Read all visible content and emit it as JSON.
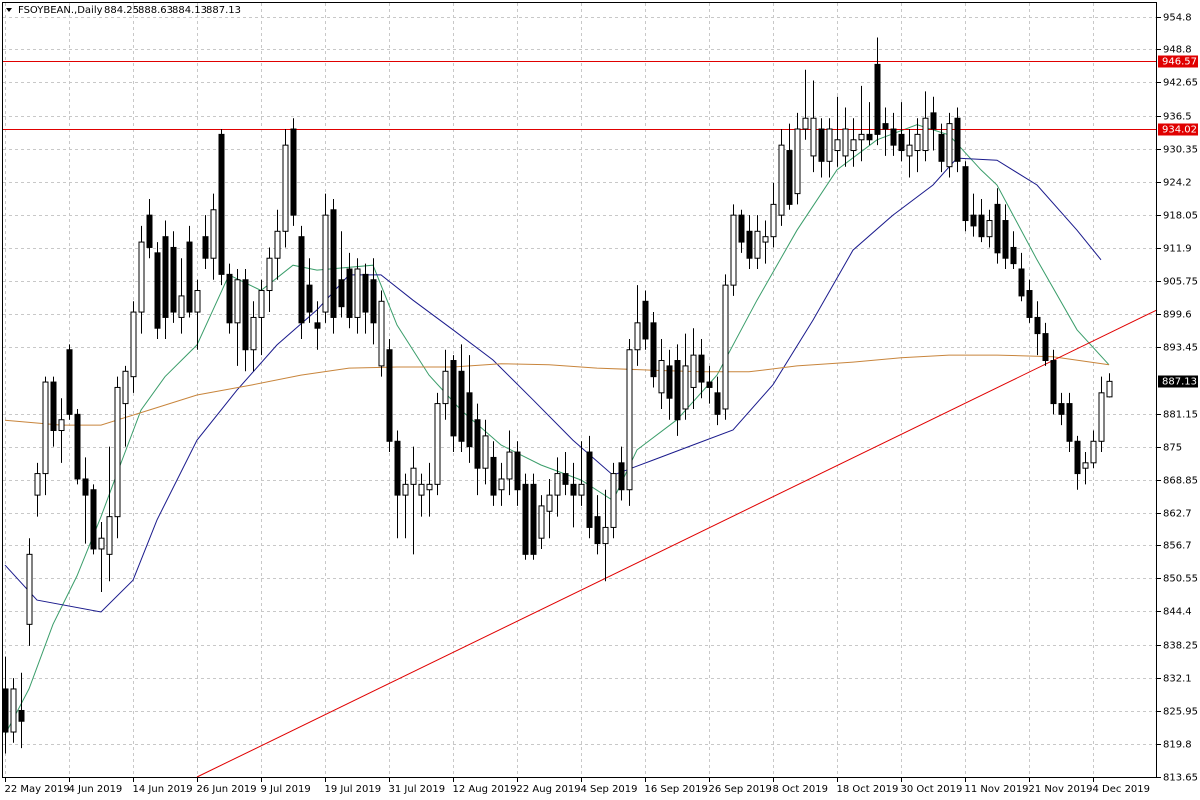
{
  "chart_data": {
    "type": "candlestick",
    "title": "FSOYBEAN.,Daily",
    "categories": [
      "22 May 2019",
      null,
      null,
      null,
      null,
      null,
      null,
      null,
      "4 Jun 2019",
      null,
      null,
      null,
      null,
      null,
      null,
      null,
      "14 Jun 2019",
      null,
      null,
      null,
      null,
      null,
      null,
      null,
      "26 Jun 2019",
      null,
      null,
      null,
      null,
      null,
      null,
      null,
      "9 Jul 2019",
      null,
      null,
      null,
      null,
      null,
      null,
      null,
      "19 Jul 2019",
      null,
      null,
      null,
      null,
      null,
      null,
      null,
      "31 Jul 2019",
      null,
      null,
      null,
      null,
      null,
      null,
      null,
      "12 Aug 2019",
      null,
      null,
      null,
      null,
      null,
      null,
      null,
      "22 Aug 2019",
      null,
      null,
      null,
      null,
      null,
      null,
      null,
      "4 Sep 2019",
      null,
      null,
      null,
      null,
      null,
      null,
      null,
      "16 Sep 2019",
      null,
      null,
      null,
      null,
      null,
      null,
      null,
      "26 Sep 2019",
      null,
      null,
      null,
      null,
      null,
      null,
      null,
      "8 Oct 2019",
      null,
      null,
      null,
      null,
      null,
      null,
      null,
      "18 Oct 2019",
      null,
      null,
      null,
      null,
      null,
      null,
      null,
      "30 Oct 2019",
      null,
      null,
      null,
      null,
      null,
      null,
      null,
      "11 Nov 2019",
      null,
      null,
      null,
      null,
      null,
      null,
      null,
      "21 Nov 2019",
      null,
      null,
      null,
      null,
      null,
      null,
      null,
      "4 Dec 2019",
      null,
      null
    ],
    "open": [
      830,
      822,
      826,
      842,
      866,
      870,
      887,
      878,
      893,
      881,
      869,
      867,
      856,
      855,
      862,
      883,
      888,
      900,
      918,
      911,
      914,
      912,
      899,
      913,
      900,
      914,
      910,
      933,
      907,
      898,
      906,
      893,
      899,
      904,
      910,
      915,
      934,
      914,
      905,
      898,
      900,
      919,
      906,
      908,
      899,
      907,
      906,
      890,
      893,
      876,
      866,
      868,
      866,
      867,
      868,
      883,
      891,
      889,
      885,
      880,
      871,
      873,
      867,
      869,
      874,
      868,
      868,
      858,
      863,
      866,
      870,
      868,
      866,
      874,
      862,
      857,
      860,
      872,
      867,
      893,
      902,
      898,
      885,
      890,
      891,
      882,
      886,
      892,
      887,
      885,
      882,
      905,
      918,
      915,
      910,
      913,
      914,
      918,
      930,
      922,
      934,
      929,
      934,
      928,
      930,
      929,
      930,
      932,
      933,
      946,
      935,
      934,
      933,
      929,
      930,
      930,
      937,
      933,
      927,
      936,
      927,
      918,
      918,
      914,
      920,
      917,
      912,
      908,
      904,
      899,
      896,
      891,
      883,
      883,
      876,
      871,
      872,
      876,
      884.25
    ],
    "high": [
      836,
      832,
      833,
      858,
      872,
      888,
      888,
      884,
      894,
      882,
      873,
      868,
      861,
      875,
      888,
      890,
      902,
      916,
      921,
      913,
      917,
      915,
      910,
      916,
      906,
      918,
      922,
      934,
      909,
      908,
      908,
      902,
      906,
      912,
      919,
      934,
      936,
      916,
      910,
      902,
      922,
      921,
      915,
      911,
      910,
      909,
      910,
      904,
      895,
      878,
      870,
      875,
      870,
      872,
      885,
      893,
      892,
      894,
      892,
      883,
      880,
      876,
      872,
      878,
      876,
      870,
      870,
      866,
      869,
      873,
      874,
      872,
      876,
      877,
      866,
      867,
      872,
      875,
      895,
      905,
      904,
      900,
      895,
      893,
      894,
      896,
      897,
      895,
      890,
      888,
      907,
      920,
      919,
      918,
      918,
      917,
      924,
      934,
      935,
      937,
      945,
      943,
      936,
      936,
      940,
      938,
      936,
      942,
      939,
      951,
      938,
      937,
      939,
      934,
      936,
      941,
      940,
      935,
      937,
      938,
      928,
      922,
      921,
      919,
      923,
      920,
      915,
      911,
      906,
      902,
      898,
      893,
      885,
      885,
      877,
      874,
      878,
      888,
      888.63
    ],
    "low": [
      818,
      820,
      819,
      838,
      862,
      866,
      875,
      872,
      880,
      868,
      857,
      855,
      848,
      850,
      858,
      875,
      885,
      896,
      910,
      895,
      895,
      898,
      896,
      899,
      893,
      908,
      906,
      905,
      896,
      890,
      889,
      889,
      892,
      900,
      906,
      912,
      916,
      895,
      898,
      893,
      898,
      896,
      899,
      897,
      896,
      896,
      894,
      888,
      874,
      858,
      858,
      855,
      862,
      862,
      866,
      880,
      874,
      874,
      872,
      866,
      868,
      864,
      864,
      866,
      864,
      854,
      854,
      856,
      858,
      862,
      866,
      860,
      864,
      858,
      855,
      850,
      858,
      865,
      864,
      890,
      893,
      886,
      882,
      880,
      877,
      880,
      882,
      884,
      883,
      879,
      880,
      903,
      911,
      908,
      908,
      909,
      912,
      916,
      919,
      920,
      932,
      926,
      925,
      925,
      927,
      927,
      927,
      928,
      931,
      931,
      929,
      929,
      928,
      925,
      926,
      928,
      930,
      926,
      925,
      926,
      915,
      914,
      913,
      912,
      909,
      908,
      908,
      902,
      898,
      892,
      890,
      881,
      879,
      874,
      867,
      868,
      871,
      874,
      884.13
    ],
    "close": [
      822,
      830,
      824,
      855,
      870,
      887,
      878,
      880,
      881,
      869,
      866,
      856,
      858,
      862,
      886,
      889,
      900,
      913,
      912,
      897,
      899,
      900,
      903,
      900,
      904,
      910,
      919,
      907,
      898,
      906,
      893,
      899,
      904,
      910,
      915,
      931,
      918,
      898,
      900,
      897,
      918,
      899,
      901,
      899,
      908,
      900,
      898,
      902,
      876,
      866,
      868,
      871,
      868,
      868,
      883,
      889,
      877,
      876,
      875,
      871,
      877,
      866,
      869,
      874,
      867,
      855,
      855,
      864,
      866,
      870,
      868,
      866,
      868,
      860,
      857,
      860,
      870,
      867,
      893,
      898,
      895,
      888,
      891,
      884,
      880,
      890,
      892,
      887,
      886,
      881,
      905,
      918,
      913,
      910,
      915,
      914,
      920,
      931,
      920,
      934,
      936,
      936,
      928,
      934,
      932,
      934,
      932,
      933,
      932,
      933,
      934,
      931,
      930,
      931,
      933,
      936,
      934,
      928,
      935,
      928,
      917,
      916,
      914,
      917,
      911,
      910,
      909,
      903,
      899,
      896,
      891,
      883,
      881,
      876,
      870,
      872,
      876,
      885,
      887.13
    ],
    "up_color": "#ffffff",
    "down_color": "#000000",
    "ylim": [
      813.46,
      957.96
    ],
    "yticks": [
      954.8,
      948.8,
      942.65,
      936.5,
      930.35,
      924.2,
      918.05,
      911.9,
      905.75,
      899.6,
      893.45,
      881.15,
      875.0,
      868.85,
      862.7,
      856.7,
      850.55,
      844.4,
      838.25,
      832.1,
      825.95,
      819.8,
      813.65
    ],
    "grid": true,
    "hlines": [
      {
        "value": 946.57,
        "color": "#e00000"
      },
      {
        "value": 934.02,
        "color": "#e00000"
      }
    ],
    "trendline": {
      "color": "#e00000",
      "x": [
        24,
        144
      ],
      "values": [
        813.65,
        900.4
      ]
    },
    "moving_averages": [
      {
        "color": "#3a9d6a",
        "x": [
          0,
          3,
          6,
          9,
          12,
          14,
          17,
          20,
          24,
          28,
          32,
          36,
          39,
          46,
          49,
          53,
          57,
          62,
          67,
          72,
          76,
          79,
          84,
          89,
          94,
          99,
          104,
          109,
          114,
          118,
          122,
          124,
          129,
          134,
          138
        ],
        "values": [
          821.5,
          830,
          842,
          851,
          862,
          870,
          881.8,
          888,
          893.9,
          906.9,
          904,
          908.7,
          907.8,
          908.7,
          897.6,
          888.3,
          881.8,
          875.3,
          871.6,
          868.8,
          865,
          874.4,
          880,
          888.3,
          902.2,
          915.2,
          926.4,
          932,
          934.8,
          932.9,
          926.4,
          923.6,
          909.7,
          896.7,
          890.2
        ]
      },
      {
        "color": "#1a1a8c",
        "x": [
          0,
          4,
          12,
          16,
          19,
          24,
          29,
          34,
          39,
          43,
          47,
          51,
          56,
          61,
          66,
          71,
          76,
          81,
          86,
          91,
          96,
          101,
          106,
          111,
          116,
          119,
          124,
          129,
          134,
          137
        ],
        "values": [
          853,
          846.5,
          844.3,
          850.2,
          861.4,
          876.2,
          885.5,
          893.9,
          900.4,
          906.9,
          906.9,
          902.2,
          896.7,
          891.1,
          883.7,
          876.2,
          869.7,
          872.5,
          875.3,
          878.1,
          886.5,
          898.5,
          911.5,
          918,
          923.6,
          928.6,
          928.2,
          923.6,
          915.2,
          909.7
        ]
      },
      {
        "color": "#c8853c",
        "x": [
          0,
          7,
          12,
          18,
          24,
          31,
          37,
          43,
          49,
          56,
          62,
          68,
          74,
          81,
          87,
          93,
          99,
          106,
          112,
          118,
          124,
          131,
          138
        ],
        "values": [
          879.9,
          879,
          879,
          881.8,
          884.6,
          886.5,
          888.3,
          889.6,
          889.8,
          889.8,
          890.4,
          890.2,
          889.6,
          889.2,
          888.9,
          888.9,
          890,
          890.7,
          891.5,
          892,
          892,
          891.7,
          890.2
        ]
      }
    ]
  }
}
